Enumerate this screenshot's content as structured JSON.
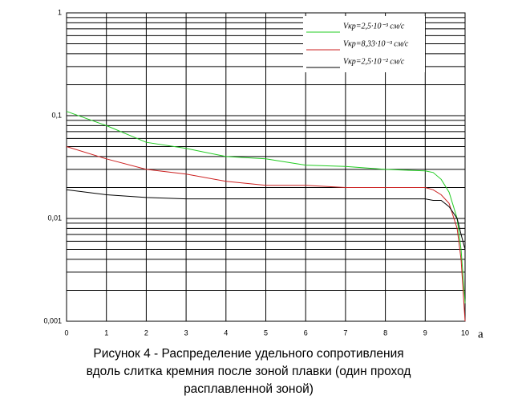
{
  "chart_data": {
    "type": "line",
    "x": [
      0,
      1,
      2,
      3,
      4,
      5,
      6,
      7,
      8,
      9,
      9.2,
      9.4,
      9.6,
      9.8,
      9.9,
      10
    ],
    "series": [
      {
        "name": "Vкр=2,5·10⁻³ см/с",
        "color": "#22cc22",
        "values": [
          0.11,
          0.08,
          0.055,
          0.048,
          0.04,
          0.038,
          0.033,
          0.032,
          0.03,
          0.029,
          0.028,
          0.024,
          0.018,
          0.01,
          0.005,
          0.0015
        ]
      },
      {
        "name": "Vкр=8,33·10⁻³ см/с",
        "color": "#cc2222",
        "values": [
          0.05,
          0.038,
          0.03,
          0.027,
          0.023,
          0.021,
          0.021,
          0.02,
          0.02,
          0.02,
          0.019,
          0.017,
          0.014,
          0.008,
          0.004,
          0.001
        ]
      },
      {
        "name": "Vкр=2,5·10⁻² см/с",
        "color": "#000000",
        "values": [
          0.019,
          0.017,
          0.016,
          0.0155,
          0.0155,
          0.0155,
          0.0155,
          0.0155,
          0.0155,
          0.0155,
          0.015,
          0.015,
          0.013,
          0.01,
          0.007,
          0.005
        ]
      }
    ],
    "xlim": [
      0,
      10
    ],
    "xticks": [
      0,
      1,
      2,
      3,
      4,
      5,
      6,
      7,
      8,
      9,
      10
    ],
    "ylim": [
      0.001,
      1
    ],
    "log_y": true,
    "yticks": [
      {
        "value": 0.001,
        "label": "0,001"
      },
      {
        "value": 0.01,
        "label": "0,01"
      },
      {
        "value": 0.1,
        "label": "0,1"
      },
      1
    ],
    "minor_yticks": [
      0.002,
      0.003,
      0.004,
      0.005,
      0.006,
      0.007,
      0.008,
      0.009,
      0.02,
      0.03,
      0.04,
      0.05,
      0.06,
      0.07,
      0.08,
      0.09,
      0.2,
      0.3,
      0.4,
      0.5,
      0.6,
      0.7,
      0.8,
      0.9
    ],
    "grid": true,
    "legend": "top-right",
    "annotation": "а",
    "caption_lines": [
      "Рисунок 4 - Распределение удельного сопротивления",
      "вдоль слитка кремния после зоной плавки (один проход",
      "расплавленной зоной)"
    ]
  }
}
